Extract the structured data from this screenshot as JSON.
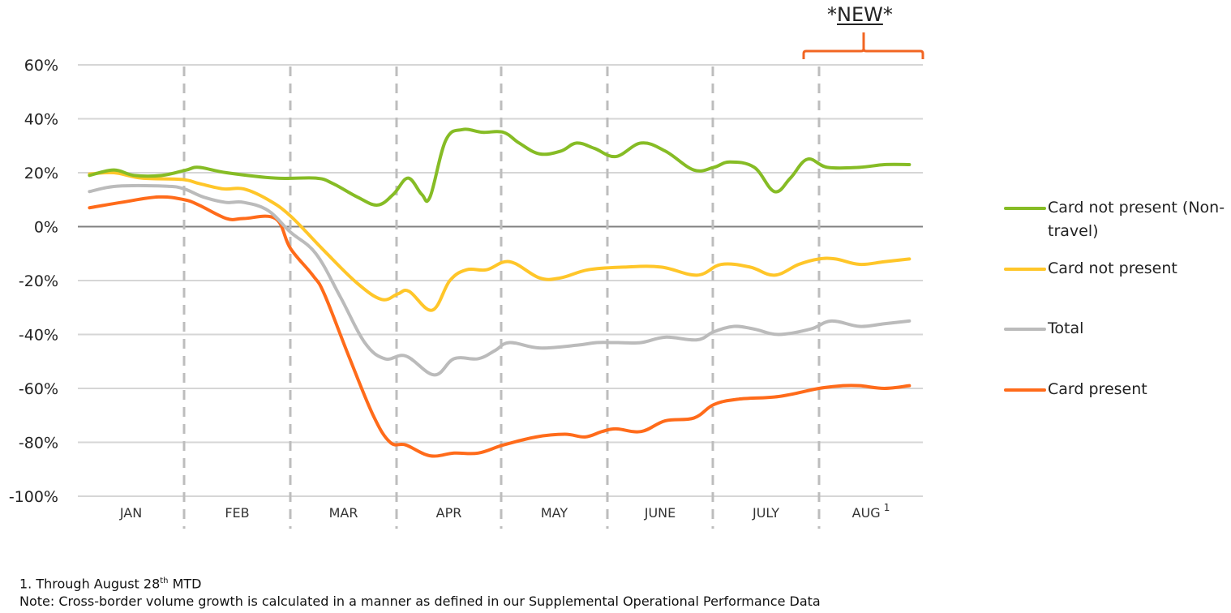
{
  "chart_data": {
    "type": "line",
    "title": "",
    "xlabel": "",
    "ylabel": "",
    "ylim": [
      -100,
      60
    ],
    "yticks": [
      60,
      40,
      20,
      0,
      -20,
      -40,
      -60,
      -80,
      -100
    ],
    "ytick_labels": [
      "60%",
      "40%",
      "20%",
      "0%",
      "-20%",
      "-40%",
      "-60%",
      "-80%",
      "-100%"
    ],
    "categories": [
      "JAN",
      "FEB",
      "MAR",
      "APR",
      "MAY",
      "JUNE",
      "JULY",
      "AUG"
    ],
    "category_superscripts": [
      "",
      "",
      "",
      "",
      "",
      "",
      "",
      "1"
    ],
    "x_unit": "months elapsed since start of January",
    "grid": true,
    "month_dividers": "dashed",
    "legend_position": "right",
    "annotation": {
      "text": "*NEW*",
      "spans": "AUG",
      "bracket_color": "#F26522"
    },
    "series": [
      {
        "name": "Card not present (Non-travel)",
        "color": "#86BC25",
        "points": [
          [
            0.11,
            19
          ],
          [
            0.34,
            21
          ],
          [
            0.53,
            19
          ],
          [
            0.79,
            19
          ],
          [
            1.02,
            21
          ],
          [
            1.14,
            22
          ],
          [
            1.4,
            20
          ],
          [
            1.86,
            18
          ],
          [
            2.24,
            18
          ],
          [
            2.4,
            16
          ],
          [
            2.63,
            11
          ],
          [
            2.82,
            8
          ],
          [
            2.97,
            12
          ],
          [
            3.11,
            18
          ],
          [
            3.24,
            12
          ],
          [
            3.32,
            11
          ],
          [
            3.47,
            32
          ],
          [
            3.63,
            36
          ],
          [
            3.82,
            35
          ],
          [
            4.02,
            35
          ],
          [
            4.17,
            31
          ],
          [
            4.36,
            27
          ],
          [
            4.56,
            28
          ],
          [
            4.71,
            31
          ],
          [
            4.88,
            29
          ],
          [
            5.08,
            26
          ],
          [
            5.32,
            31
          ],
          [
            5.55,
            28
          ],
          [
            5.82,
            21
          ],
          [
            6.01,
            22
          ],
          [
            6.16,
            24
          ],
          [
            6.39,
            22
          ],
          [
            6.58,
            13
          ],
          [
            6.73,
            18
          ],
          [
            6.89,
            25
          ],
          [
            7.08,
            22
          ],
          [
            7.39,
            22
          ],
          [
            7.63,
            23
          ],
          [
            7.87,
            23
          ]
        ]
      },
      {
        "name": "Card not present",
        "color": "#FFC629",
        "points": [
          [
            0.11,
            19.5
          ],
          [
            0.34,
            20
          ],
          [
            0.6,
            18
          ],
          [
            0.98,
            17.5
          ],
          [
            1.14,
            16
          ],
          [
            1.37,
            14
          ],
          [
            1.56,
            14
          ],
          [
            1.79,
            10
          ],
          [
            2.0,
            4
          ],
          [
            2.32,
            -9
          ],
          [
            2.63,
            -21
          ],
          [
            2.86,
            -27
          ],
          [
            3.01,
            -25
          ],
          [
            3.12,
            -24
          ],
          [
            3.34,
            -31
          ],
          [
            3.51,
            -20
          ],
          [
            3.67,
            -16
          ],
          [
            3.86,
            -16
          ],
          [
            4.08,
            -13
          ],
          [
            4.36,
            -19
          ],
          [
            4.56,
            -19
          ],
          [
            4.82,
            -16
          ],
          [
            5.16,
            -15
          ],
          [
            5.51,
            -15
          ],
          [
            5.85,
            -18
          ],
          [
            6.08,
            -14
          ],
          [
            6.35,
            -15
          ],
          [
            6.58,
            -18
          ],
          [
            6.81,
            -14
          ],
          [
            7.0,
            -12
          ],
          [
            7.16,
            -12
          ],
          [
            7.39,
            -14
          ],
          [
            7.63,
            -13
          ],
          [
            7.87,
            -12
          ]
        ]
      },
      {
        "name": "Total",
        "color": "#BBBBBB",
        "points": [
          [
            0.11,
            13
          ],
          [
            0.37,
            15
          ],
          [
            0.83,
            15
          ],
          [
            1.0,
            14
          ],
          [
            1.18,
            11
          ],
          [
            1.39,
            9
          ],
          [
            1.56,
            9
          ],
          [
            1.79,
            6
          ],
          [
            2.0,
            -2
          ],
          [
            2.24,
            -10
          ],
          [
            2.47,
            -26
          ],
          [
            2.7,
            -43
          ],
          [
            2.89,
            -49
          ],
          [
            3.09,
            -48
          ],
          [
            3.36,
            -55
          ],
          [
            3.55,
            -49
          ],
          [
            3.78,
            -49
          ],
          [
            3.94,
            -46
          ],
          [
            4.08,
            -43
          ],
          [
            4.36,
            -45
          ],
          [
            4.71,
            -44
          ],
          [
            4.9,
            -43
          ],
          [
            5.08,
            -43
          ],
          [
            5.32,
            -43
          ],
          [
            5.55,
            -41
          ],
          [
            5.85,
            -42
          ],
          [
            6.01,
            -39
          ],
          [
            6.2,
            -37
          ],
          [
            6.39,
            -38
          ],
          [
            6.62,
            -40
          ],
          [
            6.92,
            -38
          ],
          [
            7.12,
            -35
          ],
          [
            7.39,
            -37
          ],
          [
            7.63,
            -36
          ],
          [
            7.87,
            -35
          ]
        ]
      },
      {
        "name": "Card present",
        "color": "#FF6B1A",
        "points": [
          [
            0.11,
            7
          ],
          [
            0.41,
            9
          ],
          [
            0.76,
            11
          ],
          [
            1.0,
            10
          ],
          [
            1.14,
            8
          ],
          [
            1.4,
            3
          ],
          [
            1.56,
            3
          ],
          [
            1.86,
            3
          ],
          [
            2.0,
            -8
          ],
          [
            2.21,
            -18
          ],
          [
            2.32,
            -25
          ],
          [
            2.55,
            -48
          ],
          [
            2.78,
            -70
          ],
          [
            2.94,
            -80
          ],
          [
            3.09,
            -81
          ],
          [
            3.32,
            -85
          ],
          [
            3.55,
            -84
          ],
          [
            3.78,
            -84
          ],
          [
            4.02,
            -81
          ],
          [
            4.33,
            -78
          ],
          [
            4.6,
            -77
          ],
          [
            4.79,
            -78
          ],
          [
            4.95,
            -76
          ],
          [
            5.08,
            -75
          ],
          [
            5.32,
            -76
          ],
          [
            5.55,
            -72
          ],
          [
            5.82,
            -71
          ],
          [
            6.01,
            -66
          ],
          [
            6.24,
            -64
          ],
          [
            6.62,
            -63
          ],
          [
            7.0,
            -60
          ],
          [
            7.23,
            -59
          ],
          [
            7.39,
            -59
          ],
          [
            7.63,
            -60
          ],
          [
            7.87,
            -59
          ]
        ]
      }
    ]
  },
  "footnotes": {
    "line1_prefix": "1. Through August 28",
    "line1_sup": "th",
    "line1_suffix": " MTD",
    "line2": "Note: Cross-border volume growth is calculated in a manner as defined in our Supplemental Operational Performance Data"
  },
  "annotation": {
    "prefix": "*",
    "word": "NEW",
    "suffix": "*"
  }
}
